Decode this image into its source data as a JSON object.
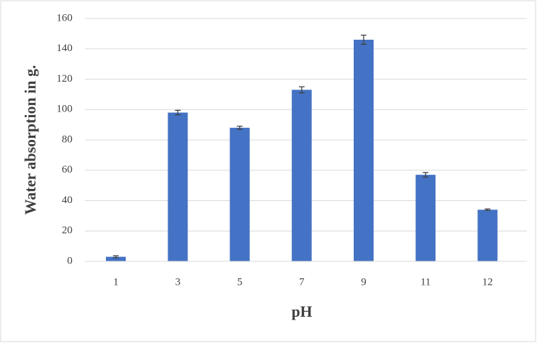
{
  "chart_data": {
    "type": "bar",
    "x_label": "pH",
    "y_label": "Water absorption in g.",
    "categories": [
      "1",
      "3",
      "5",
      "7",
      "9",
      "11",
      "12"
    ],
    "values": [
      3,
      98,
      88,
      113,
      146,
      57,
      34
    ],
    "errors": [
      0.7,
      1.5,
      1,
      2,
      3,
      1.5,
      0.5
    ],
    "color": "#4472c4",
    "error_color": "#404040",
    "ylim": [
      0,
      160
    ],
    "yticks": [
      0,
      20,
      40,
      60,
      80,
      100,
      120,
      140,
      160
    ],
    "grid": true
  }
}
